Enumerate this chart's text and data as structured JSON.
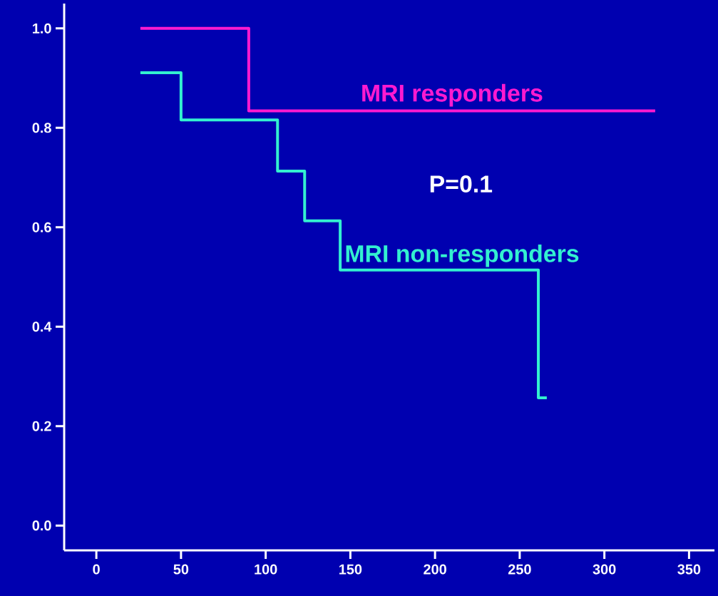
{
  "chart_data": {
    "type": "step",
    "series": [
      {
        "name": "MRI responders",
        "color": "#ff1ad0",
        "x": [
          26,
          90,
          330
        ],
        "values": [
          1.0,
          0.834,
          0.834
        ]
      },
      {
        "name": "MRI non-responders",
        "color": "#33f0d0",
        "x": [
          26,
          50,
          107,
          123,
          144,
          261,
          266
        ],
        "values": [
          0.911,
          0.816,
          0.713,
          0.613,
          0.514,
          0.257,
          0.257
        ]
      }
    ],
    "annotations": [
      "P=0.1"
    ],
    "xlim": [
      -19,
      365
    ],
    "ylim": [
      -0.05,
      1.05
    ],
    "xticks": [
      0,
      50,
      100,
      150,
      200,
      250,
      300,
      350
    ],
    "yticks": [
      {
        "value": 0.0,
        "label": "0.0"
      },
      {
        "value": 0.2,
        "label": "0.2"
      },
      {
        "value": 0.4,
        "label": "0.4"
      },
      {
        "value": 0.6,
        "label": "0.6"
      },
      {
        "value": 0.8,
        "label": "0.8"
      },
      {
        "value": 1.0,
        "label": "1.0"
      }
    ],
    "marker": "none"
  }
}
